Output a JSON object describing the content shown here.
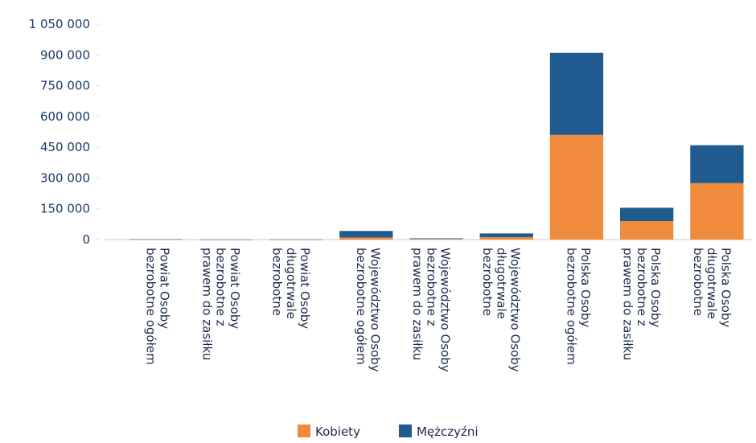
{
  "chart_data": {
    "type": "stacked_bar",
    "categories": [
      "Powiat Osoby bezrobotne ogółem",
      "Powiat Osoby bezrobotne z prawem do zasiłku",
      "Powiat Osoby długotrwale bezrobotne",
      "Województwo Osoby bezrobotne ogółem",
      "Województwo Osoby bezrobotne z prawem do zasiłku",
      "Województwo Osoby długotrwale bezrobotne",
      "Polska Osoby bezrobotne ogółem",
      "Polska Osoby bezrobotne z prawem do zasiłku",
      "Polska Osoby długotrwale bezrobotne"
    ],
    "series": [
      {
        "name": "Kobiety",
        "color": "#f08a3c",
        "values": [
          800,
          200,
          500,
          10000,
          3000,
          12000,
          510000,
          90000,
          275000
        ]
      },
      {
        "name": "Mężczyźni",
        "color": "#1f5b8e",
        "values": [
          700,
          200,
          400,
          32000,
          3000,
          18000,
          400000,
          65000,
          185000
        ]
      }
    ],
    "ylim": [
      0,
      1050000
    ],
    "yticks": [
      0,
      {
        "value": 150000,
        "label": "150 000"
      },
      {
        "value": 300000,
        "label": "300 000"
      },
      {
        "value": 450000,
        "label": "450 000"
      },
      {
        "value": 600000,
        "label": "600 000"
      },
      {
        "value": 750000,
        "label": "750 000"
      },
      {
        "value": 900000,
        "label": "900 000"
      },
      {
        "value": 1050000,
        "label": "1 050 000"
      }
    ],
    "legend": "bottom"
  }
}
